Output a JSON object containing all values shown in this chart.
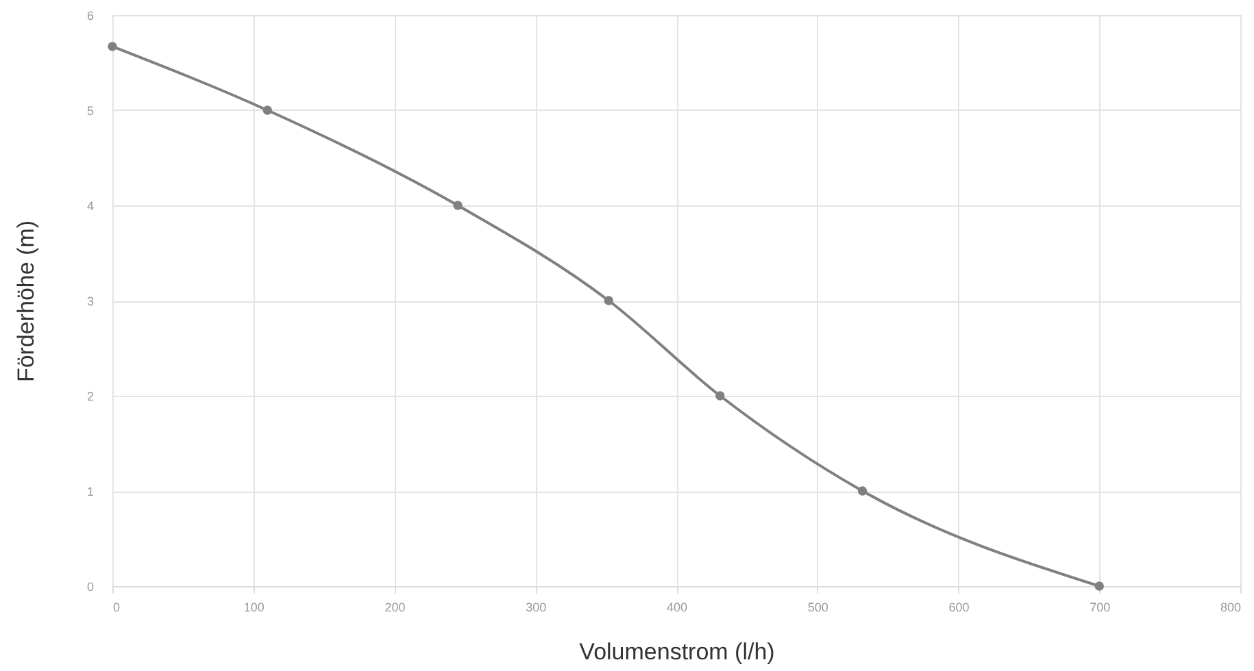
{
  "chart_data": {
    "type": "line",
    "xlabel": "Volumenstrom (l/h)",
    "ylabel": "Förderhöhe   (m)",
    "x": [
      0,
      110,
      245,
      352,
      431,
      532,
      700
    ],
    "series": [
      {
        "color": "#808080",
        "values": [
          5.67,
          5.0,
          4.0,
          3.0,
          2.0,
          1.0,
          0.0
        ]
      }
    ],
    "xlim": [
      0,
      800
    ],
    "xticks": [
      0,
      100,
      200,
      300,
      400,
      500,
      600,
      700,
      800
    ],
    "ylim": [
      0,
      6
    ],
    "yticks": [
      0,
      1,
      2,
      3,
      4,
      5,
      6
    ],
    "grid": true,
    "marker": "circle",
    "line_style": "solid"
  }
}
